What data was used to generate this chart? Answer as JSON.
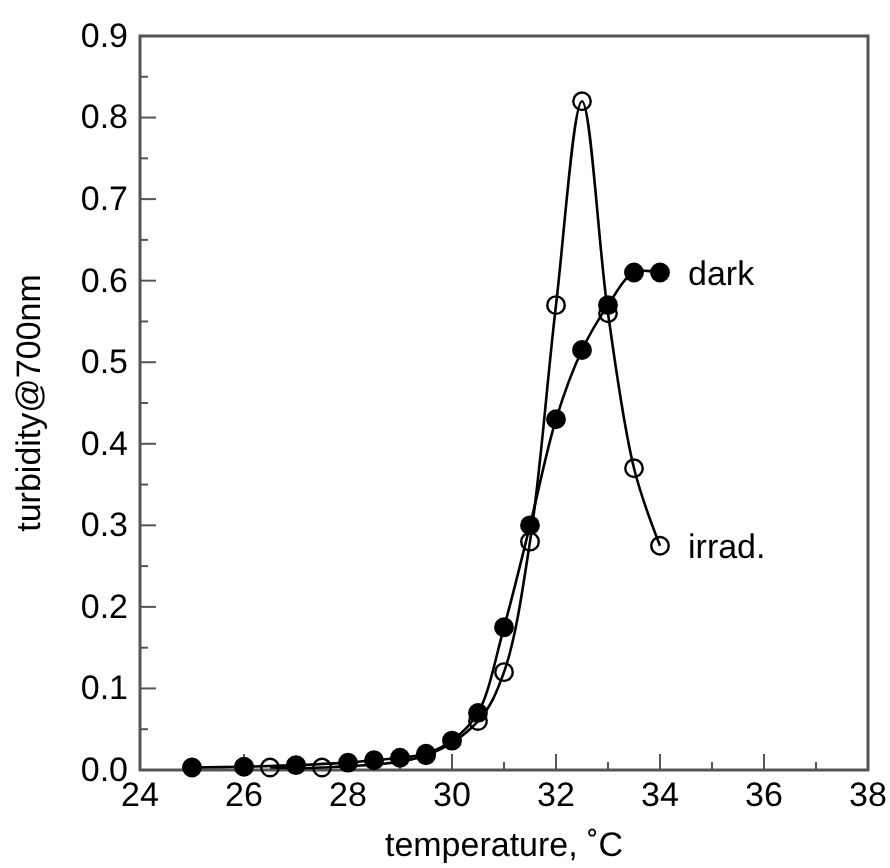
{
  "chart_data": {
    "type": "line",
    "xlabel": "temperature, ˚C",
    "ylabel": "turbidity@700nm",
    "xlim": [
      24,
      38
    ],
    "ylim": [
      0,
      0.9
    ],
    "xticks": [
      24,
      {
        "value": 25,
        "label": null
      },
      26,
      {
        "value": 27,
        "label": null
      },
      28,
      {
        "value": 29,
        "label": null
      },
      30,
      {
        "value": 31,
        "label": null
      },
      32,
      {
        "value": 33,
        "label": null
      },
      34,
      {
        "value": 35,
        "label": null
      },
      36,
      {
        "value": 37,
        "label": null
      },
      38
    ],
    "yticks": [
      "0.0",
      {
        "value": 0.05,
        "label": null
      },
      {
        "value": 0.1,
        "label": "0.1"
      },
      {
        "value": 0.15,
        "label": null
      },
      {
        "value": 0.2,
        "label": "0.2"
      },
      {
        "value": 0.25,
        "label": null
      },
      {
        "value": 0.3,
        "label": "0.3"
      },
      {
        "value": 0.35,
        "label": null
      },
      {
        "value": 0.4,
        "label": "0.4"
      },
      {
        "value": 0.45,
        "label": null
      },
      {
        "value": 0.5,
        "label": "0.5"
      },
      {
        "value": 0.55,
        "label": null
      },
      {
        "value": 0.6,
        "label": "0.6"
      },
      {
        "value": 0.65,
        "label": null
      },
      {
        "value": 0.7,
        "label": "0.7"
      },
      {
        "value": 0.75,
        "label": null
      },
      {
        "value": 0.8,
        "label": "0.8"
      },
      {
        "value": 0.85,
        "label": null
      },
      {
        "value": 0.9,
        "label": "0.9"
      }
    ],
    "grid": false,
    "marker": "circle",
    "line_style": "solid",
    "series": [
      {
        "name": "irrad.",
        "color": "#000000",
        "x": [
          26.5,
          27.5,
          29.5,
          30.5,
          31,
          31.5,
          32,
          32.5,
          33,
          33.5,
          34
        ],
        "values": [
          0.003,
          0.003,
          0.018,
          0.06,
          0.12,
          0.28,
          0.57,
          0.82,
          0.56,
          0.37,
          0.275
        ]
      },
      {
        "name": "dark",
        "color": "#000000",
        "x": [
          25,
          26,
          27,
          28,
          28.5,
          29,
          29.5,
          30,
          30.5,
          31,
          31.5,
          32,
          32.5,
          33,
          33.5,
          34
        ],
        "values": [
          0.003,
          0.004,
          0.006,
          0.009,
          0.012,
          0.015,
          0.02,
          0.036,
          0.07,
          0.175,
          0.3,
          0.43,
          0.515,
          0.57,
          0.61,
          0.61
        ]
      }
    ]
  }
}
